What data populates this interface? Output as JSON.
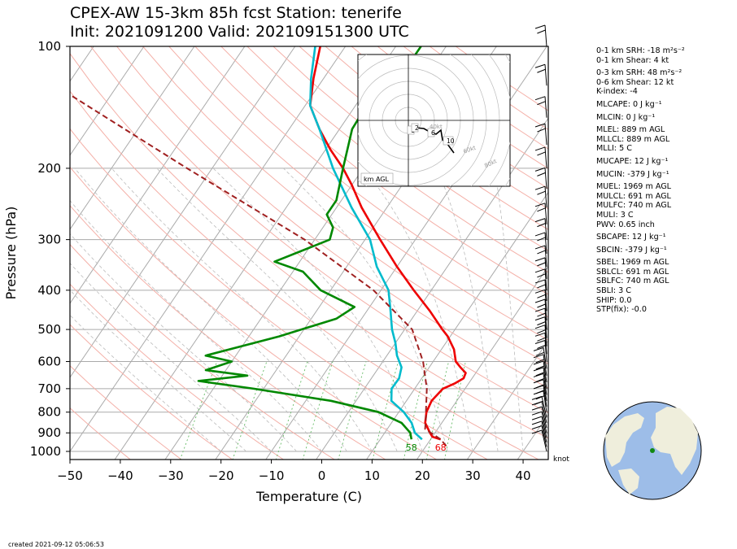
{
  "title_line1": "CPEX-AW 15-3km  85h fcst  Station: tenerife",
  "title_line2": "Init: 2021091200  Valid: 202109151300 UTC",
  "chart_data": {
    "type": "line",
    "subtype": "skew-T log-P sounding",
    "xlabel": "Temperature (C)",
    "ylabel": "Pressure (hPa)",
    "xlim": [
      -50,
      45
    ],
    "ylim": [
      1050,
      100
    ],
    "y_scale": "log",
    "x_ticks": [
      "−50",
      "−40",
      "−30",
      "−20",
      "−10",
      "0",
      "10",
      "20",
      "30",
      "40"
    ],
    "y_ticks": [
      "100",
      "200",
      "300",
      "400",
      "500",
      "600",
      "700",
      "800",
      "900",
      "1000"
    ],
    "grid": true,
    "series": [
      {
        "color": "#ee0000",
        "points": [
          [
            934,
            22
          ],
          [
            920,
            20
          ],
          [
            900,
            19
          ],
          [
            850,
            16.7
          ],
          [
            800,
            15.5
          ],
          [
            750,
            15
          ],
          [
            700,
            15.6
          ],
          [
            680,
            17.2
          ],
          [
            660,
            18.3
          ],
          [
            640,
            18
          ],
          [
            620,
            16.2
          ],
          [
            600,
            14.5
          ],
          [
            560,
            12.5
          ],
          [
            520,
            9.5
          ],
          [
            500,
            7.5
          ],
          [
            450,
            2.5
          ],
          [
            400,
            -3.5
          ],
          [
            350,
            -10
          ],
          [
            300,
            -17
          ],
          [
            250,
            -25
          ],
          [
            220,
            -30
          ],
          [
            200,
            -34
          ],
          [
            180,
            -39
          ],
          [
            160,
            -44
          ],
          [
            140,
            -49
          ],
          [
            120,
            -52
          ],
          [
            100,
            -55
          ]
        ]
      },
      {
        "color": "#00bbcc",
        "points": [
          [
            934,
            18.3
          ],
          [
            900,
            16
          ],
          [
            850,
            14
          ],
          [
            800,
            11
          ],
          [
            750,
            7
          ],
          [
            700,
            5.4
          ],
          [
            660,
            5.5
          ],
          [
            620,
            4.5
          ],
          [
            580,
            2
          ],
          [
            540,
            0
          ],
          [
            500,
            -2.5
          ],
          [
            450,
            -5.3
          ],
          [
            400,
            -8.5
          ],
          [
            350,
            -14
          ],
          [
            300,
            -19
          ],
          [
            250,
            -27
          ],
          [
            200,
            -36
          ],
          [
            160,
            -44
          ],
          [
            140,
            -49
          ],
          [
            120,
            -52.5
          ],
          [
            100,
            -56
          ]
        ]
      },
      {
        "color": "#008800",
        "points": [
          [
            934,
            16.2
          ],
          [
            900,
            15.1
          ],
          [
            850,
            12
          ],
          [
            800,
            6
          ],
          [
            750,
            -5
          ],
          [
            700,
            -22
          ],
          [
            670,
            -34
          ],
          [
            650,
            -25
          ],
          [
            630,
            -34
          ],
          [
            600,
            -30
          ],
          [
            580,
            -36
          ],
          [
            520,
            -24
          ],
          [
            470,
            -15
          ],
          [
            440,
            -13
          ],
          [
            400,
            -22
          ],
          [
            360,
            -28
          ],
          [
            340,
            -35
          ],
          [
            300,
            -27
          ],
          [
            280,
            -28
          ],
          [
            260,
            -31
          ],
          [
            240,
            -31
          ],
          [
            200,
            -34
          ],
          [
            160,
            -37.5
          ],
          [
            130,
            -38
          ],
          [
            110,
            -35
          ],
          [
            100,
            -35
          ]
        ]
      },
      {
        "color": "#a02020",
        "dashed": true,
        "points": [
          [
            970,
            24
          ],
          [
            934,
            22
          ],
          [
            880,
            17.5
          ],
          [
            820,
            16
          ],
          [
            800,
            15.4
          ],
          [
            700,
            12.4
          ],
          [
            600,
            8
          ],
          [
            500,
            1.5
          ],
          [
            400,
            -11.5
          ],
          [
            300,
            -32
          ],
          [
            200,
            -65
          ],
          [
            100,
            -120
          ]
        ]
      }
    ],
    "annotations": [
      {
        "text": "58",
        "t": 16.2,
        "color": "#008800"
      },
      {
        "text": "68",
        "t": 22.0,
        "color": "#ee0000"
      }
    ],
    "hodograph": {
      "label": "km AGL",
      "ring_labels": [
        "40kt",
        "60kt",
        "80kt"
      ],
      "height_labels": [
        "1",
        "2",
        "6",
        "10"
      ]
    },
    "wind_unit_label": "knot"
  },
  "indices": [
    "0-1 km SRH: -18 m²s⁻²",
    "0-1 km Shear: 4 kt",
    "0-3 km SRH: 48 m²s⁻²",
    "0-6 km Shear: 12 kt",
    "K-index: -4",
    "MLCAPE: 0 J kg⁻¹",
    "MLCIN: 0 J kg⁻¹",
    "MLEL: 889 m AGL",
    "MLLCL: 889 m AGL",
    "MLLI: 5 C",
    "MUCAPE: 12 J kg⁻¹",
    "MUCIN: -379 J kg⁻¹",
    "MUEL: 1969 m AGL",
    "MULCL: 691 m AGL",
    "MULFC: 740 m AGL",
    "MULI: 3 C",
    "PWV: 0.65 inch",
    "SBCAPE: 12 J kg⁻¹",
    "SBCIN: -379 J kg⁻¹",
    "SBEL: 1969 m AGL",
    "SBLCL: 691 m AGL",
    "SBLFC: 740 m AGL",
    "SBLI: 3 C",
    "SHIP: 0.0",
    "STP(fix): -0.0"
  ],
  "created": "created 2021-09-12 05:06:53",
  "colors": {
    "temperature": "#ee0000",
    "dewpoint": "#00bbcc",
    "wetbulb": "#008800",
    "parcel": "#a02020",
    "dry_adiabat": "#f4b0a8",
    "moist_adiabat": "#bbbbbb",
    "mixing_ratio": "#66bb66",
    "ocean": "#9dbde8",
    "land": "#efeedc",
    "station": "#118811"
  }
}
